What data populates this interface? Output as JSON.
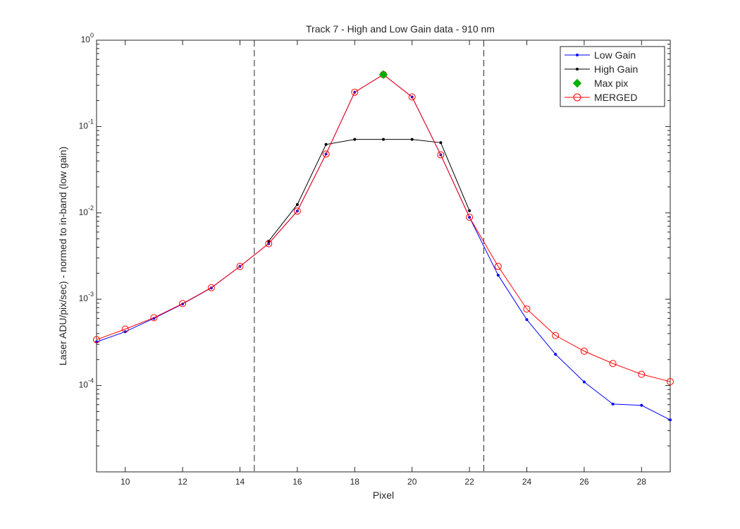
{
  "chart_data": {
    "type": "line",
    "title": "Track 7 - High and Low Gain data - 910 nm",
    "xlabel": "Pixel",
    "ylabel": "Laser ADU/pix/sec) - normed to in-band (low gain)",
    "xlim": [
      9,
      29
    ],
    "ylim": [
      1e-05,
      1
    ],
    "yscale": "log",
    "xticks": [
      10,
      12,
      14,
      16,
      18,
      20,
      22,
      24,
      26,
      28
    ],
    "yticks": [
      {
        "base": "10",
        "exp": "0",
        "value": 1
      },
      {
        "base": "10",
        "exp": "-1",
        "value": 0.1
      },
      {
        "base": "10",
        "exp": "-2",
        "value": 0.01
      },
      {
        "base": "10",
        "exp": "-3",
        "value": 0.001
      },
      {
        "base": "10",
        "exp": "-4",
        "value": 0.0001
      }
    ],
    "grid": false,
    "legend_position": "top-right",
    "vlines": [
      14.5,
      22.5
    ],
    "series": [
      {
        "name": "Low Gain",
        "color": "#0000ff",
        "marker": "dot",
        "x": [
          9,
          10,
          11,
          12,
          13,
          14,
          15,
          16,
          17,
          18,
          19,
          20,
          21,
          22,
          23,
          24,
          25,
          26,
          27,
          28,
          29
        ],
        "y": [
          0.00032,
          0.00042,
          0.0006,
          0.00088,
          0.00135,
          0.0024,
          0.0044,
          0.0105,
          0.048,
          0.25,
          0.4,
          0.22,
          0.047,
          0.0089,
          0.0019,
          0.00058,
          0.00023,
          0.00011,
          6.1e-05,
          5.9e-05,
          4e-05
        ]
      },
      {
        "name": "High Gain",
        "color": "#000000",
        "marker": "dot",
        "x": [
          15,
          16,
          17,
          18,
          19,
          20,
          21,
          22
        ],
        "y": [
          0.0047,
          0.0125,
          0.062,
          0.071,
          0.071,
          0.071,
          0.065,
          0.0106
        ]
      },
      {
        "name": "Max pix",
        "color": "#00b000",
        "marker": "diamond",
        "x": [
          19
        ],
        "y": [
          0.4
        ]
      },
      {
        "name": "MERGED",
        "color": "#ff0000",
        "marker": "circle",
        "x": [
          9,
          10,
          11,
          12,
          13,
          14,
          15,
          16,
          17,
          18,
          19,
          20,
          21,
          22,
          23,
          24,
          25,
          26,
          27,
          28,
          29
        ],
        "y": [
          0.00034,
          0.00045,
          0.00061,
          0.00089,
          0.00136,
          0.0024,
          0.0044,
          0.0105,
          0.048,
          0.25,
          0.4,
          0.22,
          0.047,
          0.0089,
          0.0024,
          0.00077,
          0.00038,
          0.00025,
          0.00018,
          0.000135,
          0.000111
        ]
      }
    ]
  }
}
